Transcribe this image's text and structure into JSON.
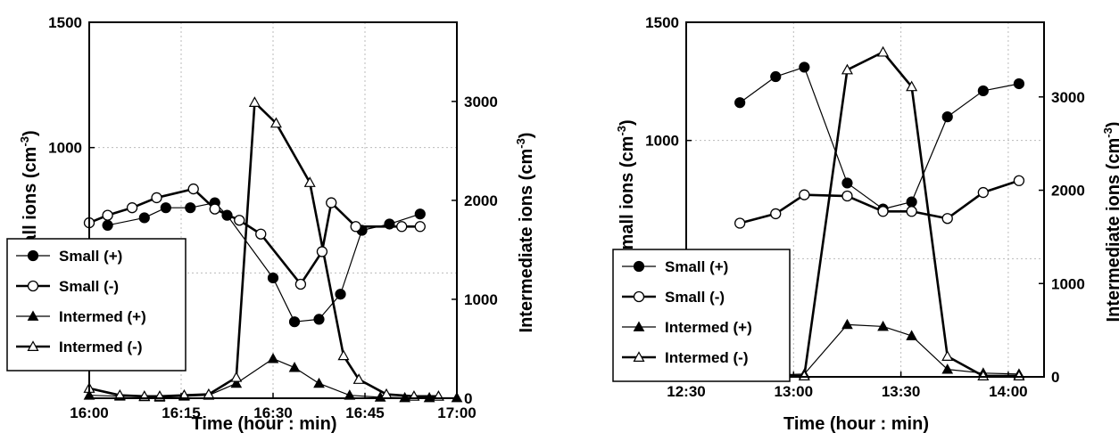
{
  "chart_data": [
    {
      "type": "line",
      "xlabel": "Time  (hour : min)",
      "ylabel_left": "Small  ions  (cm-3)",
      "ylabel_right": "Intermediate  ions  (cm-3)",
      "x_unit": "minutes after 16:00",
      "xlim": [
        0,
        60
      ],
      "ylim_left": [
        0,
        1500
      ],
      "ylim_right": [
        0,
        3800
      ],
      "x_ticks": [
        {
          "v": 0,
          "label": "16:00"
        },
        {
          "v": 15,
          "label": "16:15"
        },
        {
          "v": 30,
          "label": "16:30"
        },
        {
          "v": 45,
          "label": "16:45"
        },
        {
          "v": 60,
          "label": "17:00"
        }
      ],
      "y_left_ticks": [
        {
          "v": 500,
          "label": "500"
        },
        {
          "v": 1000,
          "label": "1000"
        },
        {
          "v": 1500,
          "label": "1500"
        }
      ],
      "y_right_ticks": [
        {
          "v": 0,
          "label": "0"
        },
        {
          "v": 1000,
          "label": "1000"
        },
        {
          "v": 2000,
          "label": "2000"
        },
        {
          "v": 3000,
          "label": "3000"
        }
      ],
      "grid": true,
      "legend_position": "bottom-left",
      "series": [
        {
          "name": "Small (+)",
          "axis": "left",
          "marker": "circle-filled",
          "line": "thin",
          "x": [
            3,
            9,
            12.5,
            16.5,
            20.5,
            22.5,
            30,
            33.5,
            37.5,
            41,
            44.5,
            49,
            54
          ],
          "y": [
            690,
            720,
            760,
            760,
            780,
            730,
            480,
            305,
            315,
            415,
            670,
            695,
            735
          ]
        },
        {
          "name": "Small (-)",
          "axis": "left",
          "marker": "circle-open",
          "line": "thick",
          "x": [
            0,
            3,
            7,
            11,
            17,
            20.5,
            24.5,
            28,
            34.5,
            38,
            39.5,
            43.5,
            51,
            54
          ],
          "y": [
            700,
            730,
            760,
            800,
            835,
            755,
            710,
            655,
            455,
            585,
            780,
            685,
            685,
            685
          ]
        },
        {
          "name": "Intermed (+)",
          "axis": "right",
          "marker": "triangle-filled",
          "line": "thin",
          "x": [
            0,
            5,
            9,
            11.5,
            15.5,
            19.5,
            24,
            30,
            33.5,
            37.5,
            42.5,
            47.5,
            51.5,
            55.5,
            60
          ],
          "y": [
            30,
            20,
            15,
            10,
            20,
            30,
            150,
            400,
            310,
            150,
            30,
            10,
            5,
            5,
            5
          ]
        },
        {
          "name": "Intermed (-)",
          "axis": "right",
          "marker": "triangle-open",
          "line": "thick",
          "x": [
            0,
            5,
            9,
            11.5,
            15.5,
            19.5,
            24,
            27,
            30.5,
            36,
            41.5,
            44,
            48.5,
            53,
            57
          ],
          "y": [
            100,
            30,
            20,
            20,
            30,
            40,
            210,
            2990,
            2780,
            2180,
            430,
            190,
            40,
            20,
            20
          ]
        }
      ]
    },
    {
      "type": "line",
      "xlabel": "Time  (hour : min)",
      "ylabel_left": "Small  ions  (cm-3)",
      "ylabel_right": "Intermediate  ions  (cm-3)",
      "x_unit": "minutes after 12:30",
      "xlim": [
        0,
        100
      ],
      "ylim_left": [
        0,
        1500
      ],
      "ylim_right": [
        0,
        3800
      ],
      "x_ticks": [
        {
          "v": 0,
          "label": "12:30"
        },
        {
          "v": 30,
          "label": "13:00"
        },
        {
          "v": 60,
          "label": "13:30"
        },
        {
          "v": 90,
          "label": "14:00"
        }
      ],
      "y_left_ticks": [
        {
          "v": 500,
          "label": "500"
        },
        {
          "v": 1000,
          "label": "1000"
        },
        {
          "v": 1500,
          "label": "1500"
        }
      ],
      "y_right_ticks": [
        {
          "v": 0,
          "label": "0"
        },
        {
          "v": 1000,
          "label": "1000"
        },
        {
          "v": 2000,
          "label": "2000"
        },
        {
          "v": 3000,
          "label": "3000"
        }
      ],
      "grid": true,
      "legend_position": "bottom-left",
      "series": [
        {
          "name": "Small (+)",
          "axis": "left",
          "marker": "circle-filled",
          "line": "thin",
          "x": [
            15,
            25,
            33,
            45,
            55,
            63,
            73,
            83,
            93
          ],
          "y": [
            1160,
            1270,
            1310,
            820,
            710,
            740,
            1100,
            1210,
            1240
          ]
        },
        {
          "name": "Small (-)",
          "axis": "left",
          "marker": "circle-open",
          "line": "thick",
          "x": [
            15,
            25,
            33,
            45,
            55,
            63,
            73,
            83,
            93
          ],
          "y": [
            650,
            690,
            770,
            765,
            700,
            700,
            670,
            780,
            830
          ]
        },
        {
          "name": "Intermed (+)",
          "axis": "right",
          "marker": "triangle-filled",
          "line": "thin",
          "x": [
            15,
            25,
            33,
            45,
            55,
            63,
            73,
            83,
            93
          ],
          "y": [
            10,
            20,
            30,
            560,
            540,
            440,
            80,
            40,
            30
          ]
        },
        {
          "name": "Intermed (-)",
          "axis": "right",
          "marker": "triangle-open",
          "line": "thick",
          "x": [
            15,
            25,
            33,
            45,
            55,
            63,
            73,
            83,
            93
          ],
          "y": [
            5,
            10,
            10,
            3290,
            3480,
            3110,
            220,
            10,
            10
          ]
        }
      ]
    }
  ]
}
